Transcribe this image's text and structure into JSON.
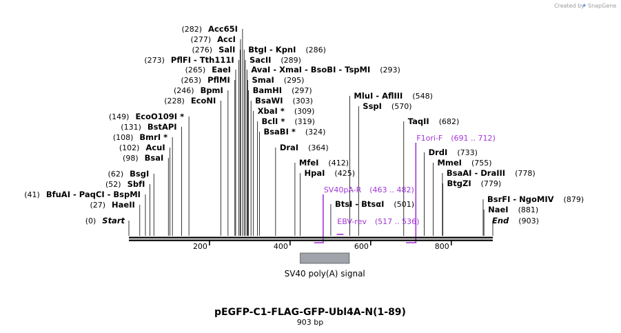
{
  "map": {
    "title": "pEGFP-C1-FLAG-GFP-Ubl4A-N(1-89)",
    "length_label": "903 bp",
    "length_bp": 903,
    "credit_prefix": "Created by",
    "credit_brand": "SnapGene",
    "axis_ticks": [
      {
        "bp": 200,
        "label": "200"
      },
      {
        "bp": 400,
        "label": "400"
      },
      {
        "bp": 600,
        "label": "600"
      },
      {
        "bp": 800,
        "label": "800"
      }
    ],
    "start_label": {
      "pos": "(0)",
      "name": "Start"
    },
    "end_label": {
      "pos": "(903)",
      "name": "End"
    },
    "left_enzymes": [
      {
        "pos": "(282)",
        "names": [
          "Acc65I"
        ],
        "bp": 282
      },
      {
        "pos": "(277)",
        "names": [
          "AccI"
        ],
        "bp": 277
      },
      {
        "pos": "(276)",
        "names": [
          "SalI"
        ],
        "bp": 276
      },
      {
        "pos": "(273)",
        "names": [
          "PflFI",
          "Tth111I"
        ],
        "bp": 273
      },
      {
        "pos": "(265)",
        "names": [
          "EaeI"
        ],
        "bp": 265
      },
      {
        "pos": "(263)",
        "names": [
          "PflMI"
        ],
        "bp": 263
      },
      {
        "pos": "(246)",
        "names": [
          "BpmI"
        ],
        "bp": 246
      },
      {
        "pos": "(228)",
        "names": [
          "EcoNI"
        ],
        "bp": 228
      },
      {
        "pos": "(149)",
        "names": [
          "EcoO109I *"
        ],
        "bp": 149
      },
      {
        "pos": "(131)",
        "names": [
          "BstAPI"
        ],
        "bp": 131
      },
      {
        "pos": "(108)",
        "names": [
          "BmrI *"
        ],
        "bp": 108
      },
      {
        "pos": "(102)",
        "names": [
          "AcuI"
        ],
        "bp": 102
      },
      {
        "pos": "(98)",
        "names": [
          "BsaI"
        ],
        "bp": 98
      },
      {
        "pos": "(62)",
        "names": [
          "BsgI"
        ],
        "bp": 62
      },
      {
        "pos": "(52)",
        "names": [
          "SbfI"
        ],
        "bp": 52
      },
      {
        "pos": "(41)",
        "names": [
          "BfuAI",
          "PaqCI",
          "BspMI"
        ],
        "bp": 41
      },
      {
        "pos": "(27)",
        "names": [
          "HaeII"
        ],
        "bp": 27
      }
    ],
    "right_enzymes": [
      {
        "names": [
          "BtgI",
          "KpnI"
        ],
        "pos": "(286)",
        "bp": 286
      },
      {
        "names": [
          "SacII"
        ],
        "pos": "(289)",
        "bp": 289
      },
      {
        "names": [
          "AvaI",
          "XmaI",
          "BsoBI",
          "TspMI"
        ],
        "pos": "(293)",
        "bp": 293
      },
      {
        "names": [
          "SmaI"
        ],
        "pos": "(295)",
        "bp": 295
      },
      {
        "names": [
          "BamHI"
        ],
        "pos": "(297)",
        "bp": 297
      },
      {
        "names": [
          "BsaWI"
        ],
        "pos": "(303)",
        "bp": 303
      },
      {
        "names": [
          "XbaI *"
        ],
        "pos": "(309)",
        "bp": 309
      },
      {
        "names": [
          "BclI *"
        ],
        "pos": "(319)",
        "bp": 319
      },
      {
        "names": [
          "BsaBI *"
        ],
        "pos": "(324)",
        "bp": 324
      },
      {
        "names": [
          "DraI"
        ],
        "pos": "(364)",
        "bp": 364
      },
      {
        "names": [
          "MfeI"
        ],
        "pos": "(412)",
        "bp": 412
      },
      {
        "names": [
          "HpaI"
        ],
        "pos": "(425)",
        "bp": 425
      },
      {
        "names": [
          "MluI",
          "AflIII"
        ],
        "pos": "(548)",
        "bp": 548
      },
      {
        "names": [
          "SspI"
        ],
        "pos": "(570)",
        "bp": 570
      },
      {
        "names": [
          "BtsI",
          "BtsαI"
        ],
        "pos": "(501)",
        "bp": 501
      },
      {
        "names": [
          "TaqII"
        ],
        "pos": "(682)",
        "bp": 682
      },
      {
        "names": [
          "DrdI"
        ],
        "pos": "(733)",
        "bp": 733
      },
      {
        "names": [
          "MmeI"
        ],
        "pos": "(755)",
        "bp": 755
      },
      {
        "names": [
          "BsaAI",
          "DraIII"
        ],
        "pos": "(778)",
        "bp": 778
      },
      {
        "names": [
          "BtgZI"
        ],
        "pos": "(779)",
        "bp": 779
      },
      {
        "names": [
          "BsrFI",
          "NgoMIV"
        ],
        "pos": "(879)",
        "bp": 879
      },
      {
        "names": [
          "NaeI"
        ],
        "pos": "(881)",
        "bp": 881
      }
    ],
    "primers": [
      {
        "name": "SV40pA-R",
        "range": "(463 .. 482)",
        "start": 463,
        "end": 482
      },
      {
        "name": "EBV-rev",
        "range": "(517 .. 536)",
        "start": 517,
        "end": 536
      },
      {
        "name": "F1ori-F",
        "range": "(691 .. 712)",
        "start": 691,
        "end": 712
      }
    ],
    "features": [
      {
        "name": "SV40 poly(A) signal",
        "start": 425,
        "end": 547,
        "color": "#a0a3aa"
      }
    ],
    "colors": {
      "primer": "#a233d6",
      "line": "#000000",
      "feature": "#a0a3aa"
    }
  }
}
